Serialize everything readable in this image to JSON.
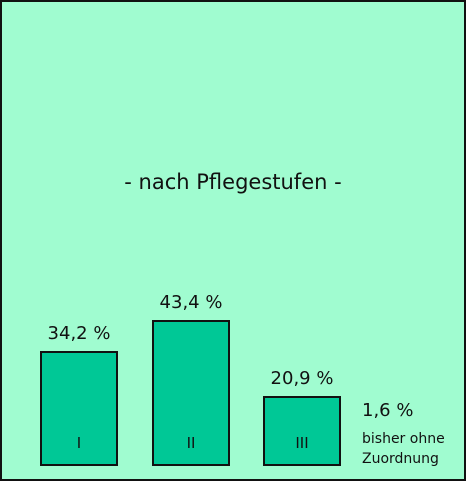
{
  "chart_data": {
    "type": "bar",
    "title": "- nach Pflegestufen -",
    "categories": [
      "I",
      "II",
      "III",
      "bisher ohne Zuordnung"
    ],
    "values": [
      34.2,
      43.4,
      20.9,
      1.6
    ],
    "value_labels": [
      "34,2 %",
      "43,4 %",
      "20,9 %",
      "1,6 %"
    ],
    "color": "#00c896"
  }
}
